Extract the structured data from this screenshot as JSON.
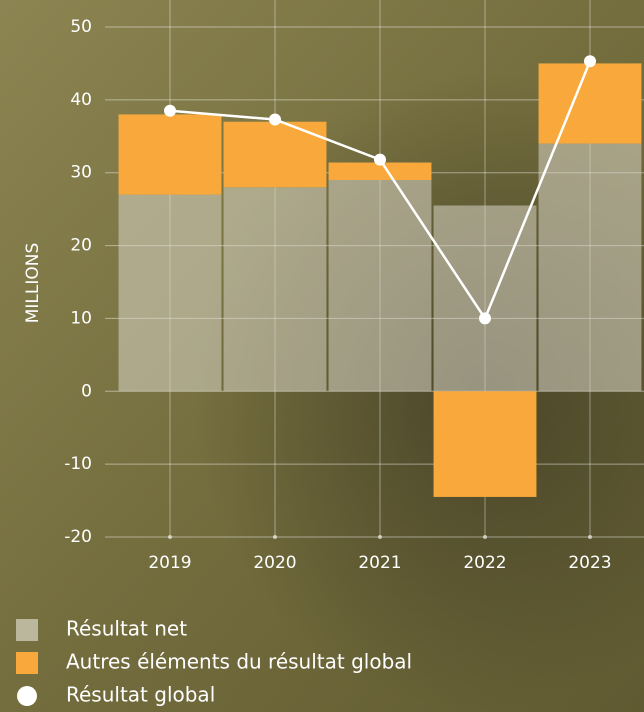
{
  "chart_data": {
    "type": "bar",
    "y_label": "MILLIONS",
    "categories": [
      "2019",
      "2020",
      "2021",
      "2022",
      "2023"
    ],
    "series": [
      {
        "name": "Résultat net",
        "type": "bar",
        "color": "#d8d6c6",
        "values": [
          27,
          28,
          29,
          25.5,
          34
        ]
      },
      {
        "name": "Autres éléments du résultat global",
        "type": "bar",
        "color": "#f9a93b",
        "values": [
          11,
          9,
          2.4,
          -14.5,
          11
        ]
      },
      {
        "name": "Résultat global",
        "type": "line",
        "color": "#ffffff",
        "values": [
          38.5,
          37.3,
          31.8,
          10,
          45.3
        ]
      }
    ],
    "ylim": [
      -20,
      50
    ],
    "yticks": [
      -20,
      -10,
      0,
      10,
      20,
      30,
      40,
      50
    ],
    "grid": true
  }
}
